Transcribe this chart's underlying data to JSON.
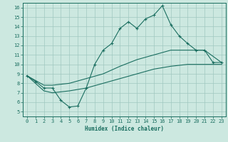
{
  "title": "",
  "xlabel": "Humidex (Indice chaleur)",
  "background_color": "#cce8e0",
  "grid_color": "#a0c8c0",
  "line_color": "#1a6e60",
  "xlim": [
    -0.5,
    23.5
  ],
  "ylim": [
    4.5,
    16.5
  ],
  "xticks": [
    0,
    1,
    2,
    3,
    4,
    5,
    6,
    7,
    8,
    9,
    10,
    11,
    12,
    13,
    14,
    15,
    16,
    17,
    18,
    19,
    20,
    21,
    22,
    23
  ],
  "yticks": [
    5,
    6,
    7,
    8,
    9,
    10,
    11,
    12,
    13,
    14,
    15,
    16
  ],
  "line1_x": [
    0,
    1,
    2,
    3,
    4,
    5,
    6,
    7,
    8,
    9,
    10,
    11,
    12,
    13,
    14,
    15,
    16,
    17,
    18,
    19,
    20,
    21,
    22,
    23
  ],
  "line1_y": [
    8.8,
    8.2,
    7.5,
    7.5,
    6.2,
    5.5,
    5.6,
    7.5,
    10.0,
    11.5,
    12.2,
    13.8,
    14.5,
    13.8,
    14.8,
    15.2,
    16.2,
    14.2,
    13.0,
    12.2,
    11.5,
    11.5,
    10.2,
    10.2
  ],
  "line2_x": [
    0,
    2,
    3,
    5,
    7,
    9,
    11,
    13,
    15,
    17,
    19,
    21,
    23
  ],
  "line2_y": [
    8.8,
    7.8,
    7.8,
    8.0,
    8.5,
    9.0,
    9.8,
    10.5,
    11.0,
    11.5,
    11.5,
    11.5,
    10.2
  ],
  "line3_x": [
    0,
    2,
    3,
    5,
    7,
    9,
    11,
    13,
    15,
    17,
    19,
    21,
    23
  ],
  "line3_y": [
    8.8,
    7.2,
    7.0,
    7.2,
    7.5,
    8.0,
    8.5,
    9.0,
    9.5,
    9.8,
    10.0,
    10.0,
    10.0
  ]
}
